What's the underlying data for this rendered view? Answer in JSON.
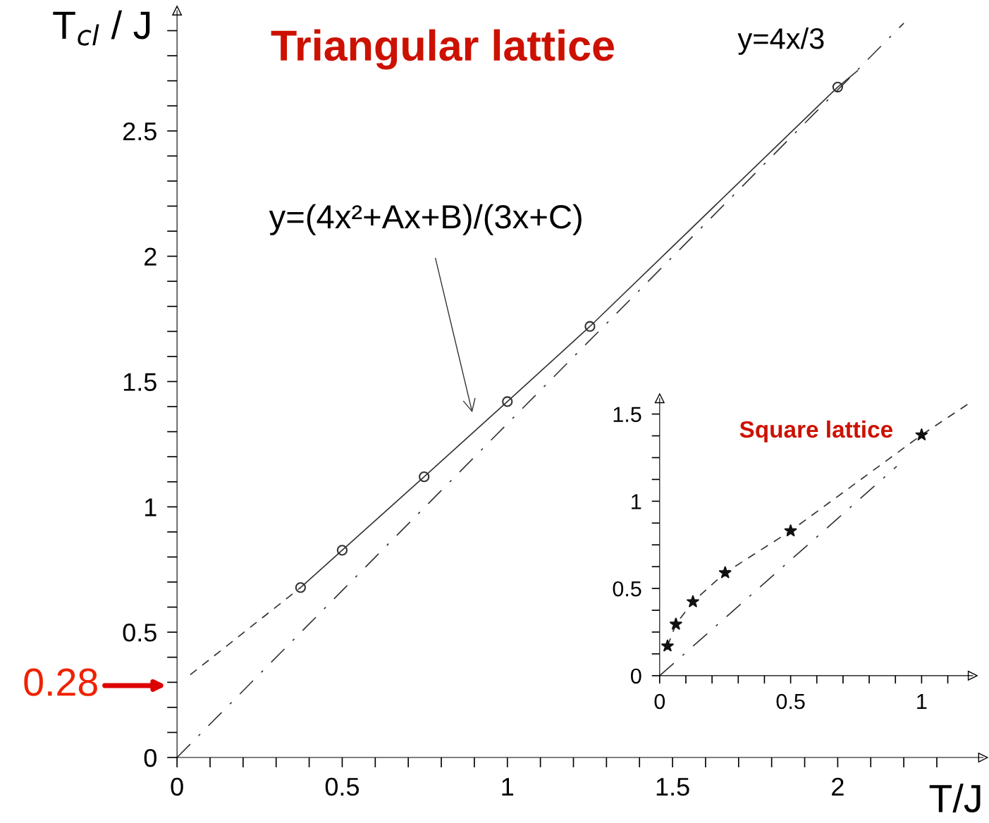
{
  "chart_data": [
    {
      "type": "scatter",
      "title": "Triangular lattice",
      "xlabel": "T/J",
      "ylabel": "T$_{cl}$ / J",
      "xlim": [
        0,
        2.44
      ],
      "ylim": [
        0,
        2.98
      ],
      "xticks": [
        0,
        {
          "value": 0.1,
          "label": null
        },
        {
          "value": 0.2,
          "label": null
        },
        {
          "value": 0.3,
          "label": null
        },
        {
          "value": 0.4,
          "label": null
        },
        0.5,
        {
          "value": 0.6,
          "label": null
        },
        {
          "value": 0.7,
          "label": null
        },
        {
          "value": 0.8,
          "label": null
        },
        {
          "value": 0.9,
          "label": null
        },
        1,
        {
          "value": 1.1,
          "label": null
        },
        {
          "value": 1.2,
          "label": null
        },
        {
          "value": 1.3,
          "label": null
        },
        {
          "value": 1.4,
          "label": null
        },
        1.5,
        {
          "value": 1.6,
          "label": null
        },
        {
          "value": 1.7,
          "label": null
        },
        {
          "value": 1.8,
          "label": null
        },
        {
          "value": 1.9,
          "label": null
        },
        2,
        {
          "value": 2.1,
          "label": null
        },
        {
          "value": 2.2,
          "label": null
        },
        {
          "value": 2.3,
          "label": null
        }
      ],
      "yticks": [
        0,
        {
          "value": 0.1,
          "label": null
        },
        {
          "value": 0.2,
          "label": null
        },
        {
          "value": 0.3,
          "label": null
        },
        {
          "value": 0.4,
          "label": null
        },
        0.5,
        {
          "value": 0.6,
          "label": null
        },
        {
          "value": 0.7,
          "label": null
        },
        {
          "value": 0.8,
          "label": null
        },
        {
          "value": 0.9,
          "label": null
        },
        1,
        {
          "value": 1.1,
          "label": null
        },
        {
          "value": 1.2,
          "label": null
        },
        {
          "value": 1.3,
          "label": null
        },
        {
          "value": 1.4,
          "label": null
        },
        1.5,
        {
          "value": 1.6,
          "label": null
        },
        {
          "value": 1.7,
          "label": null
        },
        {
          "value": 1.8,
          "label": null
        },
        {
          "value": 1.9,
          "label": null
        },
        2,
        {
          "value": 2.1,
          "label": null
        },
        {
          "value": 2.2,
          "label": null
        },
        {
          "value": 2.3,
          "label": null
        },
        {
          "value": 2.4,
          "label": null
        },
        2.5,
        {
          "value": 2.6,
          "label": null
        },
        {
          "value": 2.7,
          "label": null
        },
        {
          "value": 2.8,
          "label": null
        },
        {
          "value": 2.9,
          "label": null
        }
      ],
      "grid": false,
      "legend": false,
      "series": [
        {
          "marker": "circle",
          "color": "#333333",
          "x": [
            0.374,
            0.5,
            0.748,
            1.0,
            1.25,
            2.0
          ],
          "values": [
            0.678,
            0.827,
            1.12,
            1.42,
            1.72,
            2.675
          ]
        },
        {
          "type": "line",
          "line_style": "solid",
          "marker": "none",
          "color": "#333333",
          "x": [
            0.374,
            0.5,
            0.748,
            1.0,
            1.25,
            2.0,
            2.06
          ],
          "values": [
            0.678,
            0.827,
            1.12,
            1.42,
            1.72,
            2.675,
            2.74
          ]
        },
        {
          "type": "line",
          "line_style": "dashed",
          "marker": "none",
          "color": "#333333",
          "x": [
            0.04,
            0.374
          ],
          "values": [
            0.33,
            0.678
          ]
        },
        {
          "type": "line",
          "line_style": "dashdot",
          "marker": "none",
          "color": "#333333",
          "x": [
            0,
            2.2
          ],
          "values": [
            0,
            2.93
          ]
        }
      ],
      "annotations": [
        "y=(4x²+Ax+B)/(3x+C)",
        "y=4x/3",
        "0.28"
      ]
    },
    {
      "type": "scatter",
      "title": "Square lattice",
      "xlim": [
        0,
        1.195
      ],
      "ylim": [
        0,
        1.59
      ],
      "xticks": [
        0,
        {
          "value": 0.1,
          "label": null
        },
        {
          "value": 0.2,
          "label": null
        },
        {
          "value": 0.3,
          "label": null
        },
        {
          "value": 0.4,
          "label": null
        },
        0.5,
        {
          "value": 0.6,
          "label": null
        },
        {
          "value": 0.7,
          "label": null
        },
        {
          "value": 0.8,
          "label": null
        },
        {
          "value": 0.9,
          "label": null
        },
        1,
        {
          "value": 1.1,
          "label": null
        }
      ],
      "yticks": [
        0,
        {
          "value": 0.125,
          "label": null
        },
        {
          "value": 0.25,
          "label": null
        },
        {
          "value": 0.375,
          "label": null
        },
        0.5,
        {
          "value": 0.625,
          "label": null
        },
        {
          "value": 0.75,
          "label": null
        },
        {
          "value": 0.875,
          "label": null
        },
        1,
        {
          "value": 1.125,
          "label": null
        },
        {
          "value": 1.25,
          "label": null
        },
        {
          "value": 1.375,
          "label": null
        },
        1.5
      ],
      "grid": false,
      "legend": false,
      "series": [
        {
          "marker": "star",
          "color": "#111111",
          "x": [
            0.03,
            0.062,
            0.127,
            0.25,
            0.5,
            1.0
          ],
          "values": [
            0.17,
            0.295,
            0.424,
            0.59,
            0.83,
            1.38
          ]
        },
        {
          "type": "line",
          "line_style": "dashed",
          "marker": "none",
          "color": "#333333",
          "x": [
            0.03,
            0.062,
            0.127,
            0.25,
            0.5,
            1.0,
            1.18
          ],
          "values": [
            0.17,
            0.295,
            0.424,
            0.59,
            0.83,
            1.38,
            1.56
          ]
        },
        {
          "type": "line",
          "line_style": "dashdot",
          "marker": "none",
          "color": "#333333",
          "x": [
            0,
            0.905
          ],
          "values": [
            0,
            1.2
          ]
        }
      ]
    }
  ]
}
